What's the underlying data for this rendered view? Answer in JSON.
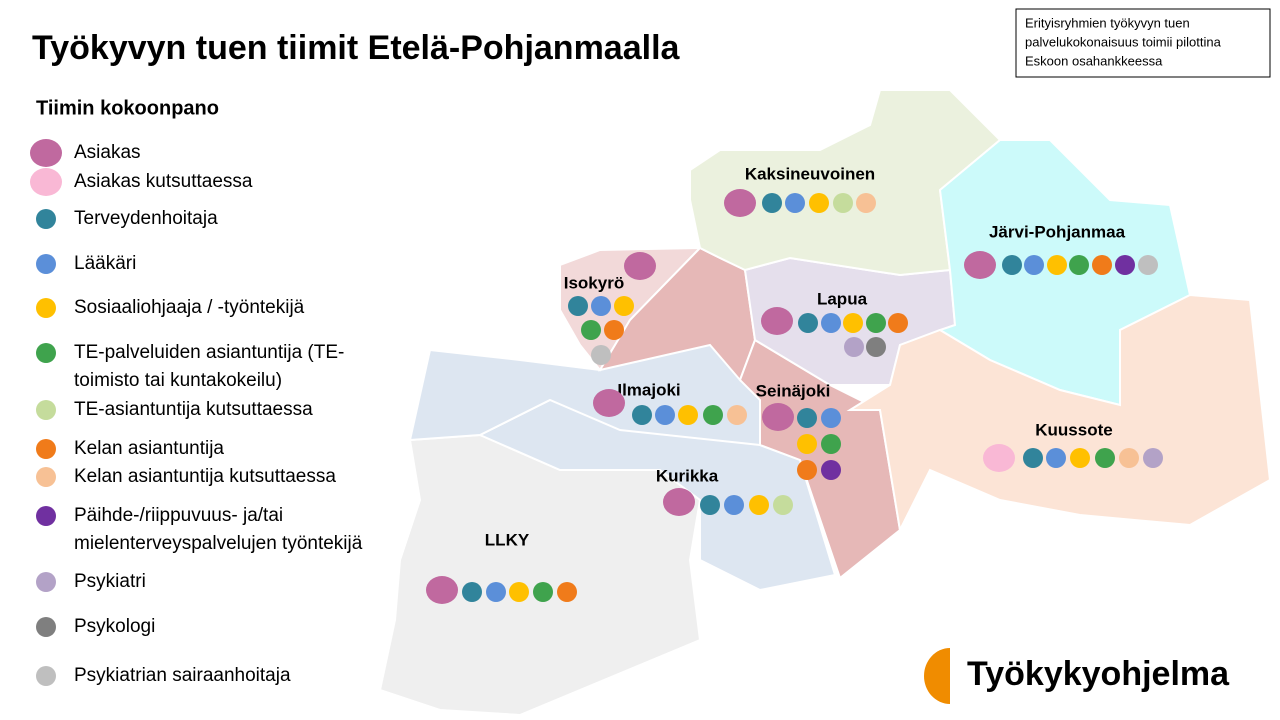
{
  "header": {
    "title": "Työkyvyn tuen tiimit Etelä-Pohjanmaalla",
    "note": [
      "Erityisryhmien työkyvyn tuen",
      "palvelukokonaisuus toimii pilottina",
      "Eskoon osahankkeessa"
    ]
  },
  "legend": {
    "title": "Tiimin kokoonpano",
    "items": [
      {
        "lines": [
          "Asiakas"
        ],
        "color": "#c0699f"
      },
      {
        "lines": [
          "Asiakas kutsuttaessa"
        ],
        "color": "#f9b8d5"
      },
      {
        "lines": [
          "Terveydenhoitaja"
        ],
        "color": "#31849b"
      },
      {
        "lines": [
          "Lääkäri"
        ],
        "color": "#5b8fd9"
      },
      {
        "lines": [
          "Sosiaaliohjaaja / -työntekijä"
        ],
        "color": "#ffc000"
      },
      {
        "lines": [
          "TE-palveluiden asiantuntija (TE-",
          "toimisto tai kuntakokeilu)"
        ],
        "color": "#3fa34d"
      },
      {
        "lines": [
          "TE-asiantuntija kutsuttaessa"
        ],
        "color": "#c5dc9c"
      },
      {
        "lines": [
          "Kelan asiantuntija"
        ],
        "color": "#f07b1a"
      },
      {
        "lines": [
          "Kelan asiantuntija kutsuttaessa"
        ],
        "color": "#f7c195"
      },
      {
        "lines": [
          "Päihde-/riippuvuus- ja/tai",
          "mielenterveyspalvelujen työntekijä"
        ],
        "color": "#7030a0"
      },
      {
        "lines": [
          "Psykiatri"
        ],
        "color": "#b3a2c7"
      },
      {
        "lines": [
          "Psykologi"
        ],
        "color": "#7f7f7f"
      },
      {
        "lines": [
          "Psykiatrian sairaanhoitaja"
        ],
        "color": "#bfbfbf"
      }
    ]
  },
  "regions": [
    {
      "name": "Kaksineuvoinen",
      "members": [
        0,
        2,
        3,
        4,
        6,
        8
      ]
    },
    {
      "name": "Järvi-Pohjanmaa",
      "members": [
        0,
        2,
        3,
        4,
        5,
        7,
        9,
        12
      ]
    },
    {
      "name": "Isokyrö",
      "members": [
        0,
        2,
        3,
        4,
        5,
        7,
        12
      ]
    },
    {
      "name": "Lapua",
      "members": [
        0,
        2,
        3,
        4,
        5,
        7,
        10,
        11
      ]
    },
    {
      "name": "Ilmajoki",
      "members": [
        0,
        2,
        3,
        4,
        5,
        8
      ]
    },
    {
      "name": "Seinäjoki",
      "members": [
        0,
        2,
        3,
        4,
        5,
        7,
        9
      ]
    },
    {
      "name": "Kuussote",
      "members": [
        1,
        2,
        3,
        4,
        5,
        8,
        10
      ]
    },
    {
      "name": "Kurikka",
      "members": [
        0,
        2,
        3,
        4,
        6
      ]
    },
    {
      "name": "LLKY",
      "members": [
        0,
        2,
        3,
        4,
        5,
        7
      ]
    }
  ],
  "logo": "Työkykyohjelma"
}
